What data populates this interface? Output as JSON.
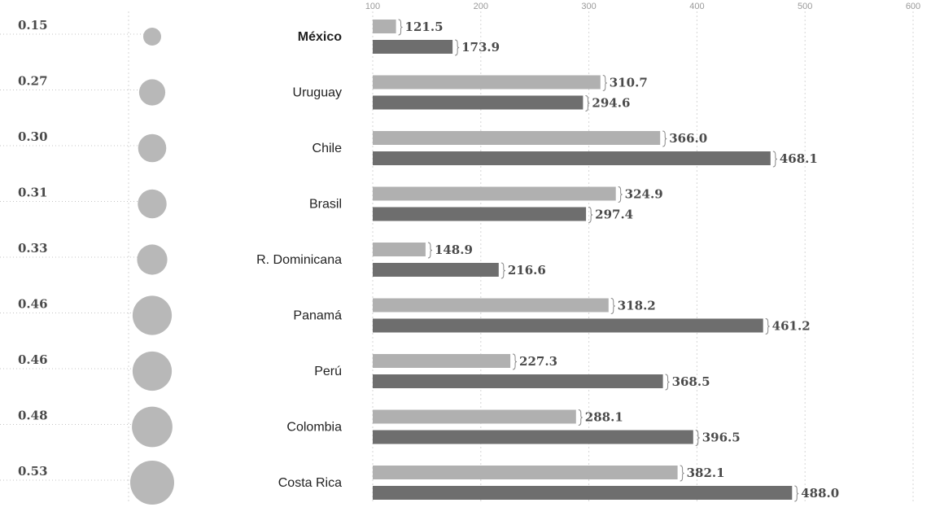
{
  "chart_data": {
    "type": "bar",
    "orientation": "horizontal",
    "title": "",
    "xlabel": "",
    "ylabel": "",
    "xlim": [
      100,
      600
    ],
    "x_ticks": [
      100,
      200,
      300,
      400,
      500,
      600
    ],
    "x_tick_labels": [
      "100",
      "200",
      "300",
      "400",
      "500",
      "600"
    ],
    "grid": true,
    "categories": [
      "México",
      "Uruguay",
      "Chile",
      "Brasil",
      "R. Dominicana",
      "Panamá",
      "Perú",
      "Colombia",
      "Costa Rica"
    ],
    "category_values": [
      "0.15",
      "0.27",
      "0.30",
      "0.31",
      "0.33",
      "0.46",
      "0.46",
      "0.48",
      "0.53"
    ],
    "series": [
      {
        "values": [
          121.5,
          310.7,
          366.0,
          324.9,
          148.9,
          318.2,
          227.3,
          288.1,
          382.1
        ],
        "labels": [
          "121.5",
          "310.7",
          "366.0",
          "324.9",
          "148.9",
          "318.2",
          "227.3",
          "288.1",
          "382.1"
        ],
        "color": "#b0b0b0"
      },
      {
        "values": [
          173.9,
          294.6,
          468.1,
          297.4,
          216.6,
          461.2,
          368.5,
          396.5,
          488.0
        ],
        "labels": [
          "173.9",
          "294.6",
          "468.1",
          "297.4",
          "216.6",
          "461.2",
          "368.5",
          "396.5",
          "488.0"
        ],
        "color": "#6e6e6e"
      }
    ],
    "marker_color": "#b8b8b8",
    "grid_color": "#d6d6d6"
  }
}
